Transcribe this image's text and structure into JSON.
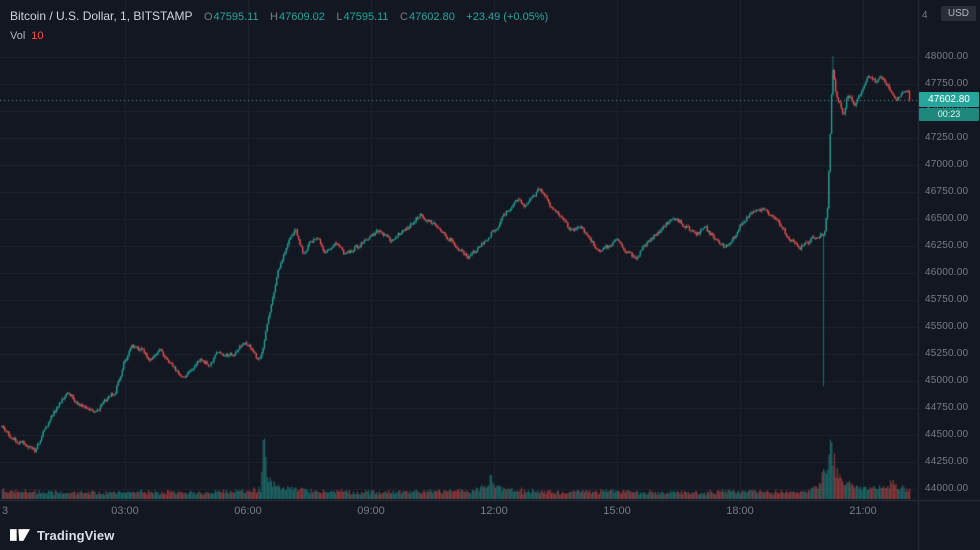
{
  "header": {
    "symbol_title": "Bitcoin / U.S. Dollar, 1, BITSTAMP",
    "ohlc": {
      "o_label": "O",
      "o": "47595.11",
      "h_label": "H",
      "h": "47609.02",
      "l_label": "L",
      "l": "47595.11",
      "c_label": "C",
      "c": "47602.80",
      "change": "+23.49 (+0.05%)"
    },
    "indicator": {
      "label": "Vol",
      "value": "10"
    }
  },
  "price_scale": {
    "currency_button": "USD",
    "partial_tick": "4",
    "ticks": [
      "48000.00",
      "47750.00",
      "47500.00",
      "47250.00",
      "47000.00",
      "46750.00",
      "46500.00",
      "46250.00",
      "46000.00",
      "45750.00",
      "45500.00",
      "45250.00",
      "45000.00",
      "44750.00",
      "44500.00",
      "44250.00",
      "44000.00"
    ],
    "last_price_label": "47602.80",
    "countdown": "00:23"
  },
  "time_scale": {
    "labels": [
      {
        "t": 0,
        "text": "3"
      },
      {
        "t": 180,
        "text": "03:00"
      },
      {
        "t": 360,
        "text": "06:00"
      },
      {
        "t": 540,
        "text": "09:00"
      },
      {
        "t": 720,
        "text": "12:00"
      },
      {
        "t": 900,
        "text": "15:00"
      },
      {
        "t": 1080,
        "text": "18:00"
      },
      {
        "t": 1260,
        "text": "21:00"
      }
    ]
  },
  "footer": {
    "brand": "TradingView"
  },
  "colors": {
    "bg": "#131722",
    "grid": "#1e222d",
    "separator": "#2a2e39",
    "axis_text": "#787b86",
    "text": "#d1d4dc",
    "up": "#26a69a",
    "down": "#ef5350",
    "last_line": "#4ba69c",
    "label_bg": "#26a69a",
    "countdown_bg": "#1e887c",
    "vol_value_red": "#ef5350"
  },
  "chart_data": {
    "type": "candlestick",
    "symbol": "BTCUSD",
    "pair": "Bitcoin / U.S. Dollar",
    "exchange": "BITSTAMP",
    "interval": "1",
    "ohlc_current": {
      "open": 47595.11,
      "high": 47609.02,
      "low": 47595.11,
      "close": 47602.8,
      "change": 23.49,
      "change_pct": 0.05
    },
    "volume_current": 10,
    "last_price": 47602.8,
    "countdown": "00:23",
    "y_axis": {
      "min": 44000,
      "max": 48000,
      "tick_step": 250
    },
    "x_axis": {
      "start_minute": 0,
      "end_minute": 1330,
      "tick_step_minutes": 180,
      "date_label": "3"
    },
    "legend_position": "top-left",
    "grid": true,
    "price_path": [
      [
        0,
        44580
      ],
      [
        15,
        44470
      ],
      [
        30,
        44420
      ],
      [
        48,
        44360
      ],
      [
        60,
        44520
      ],
      [
        75,
        44700
      ],
      [
        97,
        44900
      ],
      [
        110,
        44800
      ],
      [
        121,
        44740
      ],
      [
        135,
        44700
      ],
      [
        151,
        44820
      ],
      [
        166,
        44900
      ],
      [
        178,
        45150
      ],
      [
        190,
        45330
      ],
      [
        205,
        45280
      ],
      [
        217,
        45190
      ],
      [
        231,
        45280
      ],
      [
        245,
        45160
      ],
      [
        263,
        45030
      ],
      [
        278,
        45120
      ],
      [
        290,
        45190
      ],
      [
        305,
        45140
      ],
      [
        312,
        45260
      ],
      [
        325,
        45230
      ],
      [
        340,
        45250
      ],
      [
        356,
        45370
      ],
      [
        366,
        45290
      ],
      [
        375,
        45180
      ],
      [
        381,
        45260
      ],
      [
        392,
        45650
      ],
      [
        404,
        46020
      ],
      [
        414,
        46210
      ],
      [
        421,
        46330
      ],
      [
        429,
        46400
      ],
      [
        441,
        46170
      ],
      [
        451,
        46280
      ],
      [
        462,
        46320
      ],
      [
        473,
        46180
      ],
      [
        487,
        46290
      ],
      [
        502,
        46170
      ],
      [
        517,
        46230
      ],
      [
        531,
        46290
      ],
      [
        539,
        46330
      ],
      [
        553,
        46400
      ],
      [
        568,
        46310
      ],
      [
        583,
        46370
      ],
      [
        597,
        46440
      ],
      [
        612,
        46540
      ],
      [
        627,
        46470
      ],
      [
        641,
        46400
      ],
      [
        656,
        46310
      ],
      [
        670,
        46210
      ],
      [
        685,
        46140
      ],
      [
        700,
        46260
      ],
      [
        714,
        46350
      ],
      [
        724,
        46420
      ],
      [
        736,
        46540
      ],
      [
        751,
        46680
      ],
      [
        765,
        46630
      ],
      [
        780,
        46720
      ],
      [
        787,
        46780
      ],
      [
        802,
        46630
      ],
      [
        817,
        46540
      ],
      [
        831,
        46400
      ],
      [
        846,
        46440
      ],
      [
        861,
        46310
      ],
      [
        875,
        46200
      ],
      [
        890,
        46260
      ],
      [
        900,
        46310
      ],
      [
        912,
        46210
      ],
      [
        927,
        46140
      ],
      [
        941,
        46260
      ],
      [
        956,
        46350
      ],
      [
        970,
        46440
      ],
      [
        985,
        46510
      ],
      [
        1000,
        46440
      ],
      [
        1014,
        46350
      ],
      [
        1029,
        46420
      ],
      [
        1044,
        46310
      ],
      [
        1058,
        46230
      ],
      [
        1073,
        46350
      ],
      [
        1080,
        46440
      ],
      [
        1095,
        46540
      ],
      [
        1109,
        46600
      ],
      [
        1124,
        46540
      ],
      [
        1139,
        46440
      ],
      [
        1153,
        46310
      ],
      [
        1168,
        46230
      ],
      [
        1183,
        46310
      ],
      [
        1197,
        46350
      ],
      [
        1204,
        46380
      ],
      [
        1208,
        46600
      ],
      [
        1211,
        47100
      ],
      [
        1214,
        47650
      ],
      [
        1216,
        47900
      ],
      [
        1220,
        47680
      ],
      [
        1224,
        47600
      ],
      [
        1231,
        47460
      ],
      [
        1238,
        47650
      ],
      [
        1248,
        47560
      ],
      [
        1259,
        47700
      ],
      [
        1267,
        47830
      ],
      [
        1278,
        47770
      ],
      [
        1288,
        47800
      ],
      [
        1300,
        47700
      ],
      [
        1310,
        47600
      ],
      [
        1317,
        47650
      ],
      [
        1324,
        47700
      ],
      [
        1330,
        47603
      ]
    ],
    "volume_profile": [
      [
        0,
        0.1
      ],
      [
        20,
        0.06
      ],
      [
        60,
        0.05
      ],
      [
        120,
        0.04
      ],
      [
        180,
        0.06
      ],
      [
        240,
        0.05
      ],
      [
        300,
        0.04
      ],
      [
        360,
        0.07
      ],
      [
        378,
        0.1
      ],
      [
        383,
        0.85
      ],
      [
        388,
        0.25
      ],
      [
        400,
        0.15
      ],
      [
        420,
        0.1
      ],
      [
        450,
        0.08
      ],
      [
        480,
        0.06
      ],
      [
        520,
        0.06
      ],
      [
        560,
        0.05
      ],
      [
        600,
        0.06
      ],
      [
        650,
        0.07
      ],
      [
        690,
        0.08
      ],
      [
        710,
        0.15
      ],
      [
        716,
        0.35
      ],
      [
        722,
        0.15
      ],
      [
        750,
        0.08
      ],
      [
        790,
        0.06
      ],
      [
        830,
        0.05
      ],
      [
        870,
        0.06
      ],
      [
        900,
        0.07
      ],
      [
        940,
        0.05
      ],
      [
        980,
        0.05
      ],
      [
        1020,
        0.05
      ],
      [
        1060,
        0.06
      ],
      [
        1090,
        0.07
      ],
      [
        1120,
        0.06
      ],
      [
        1150,
        0.05
      ],
      [
        1180,
        0.07
      ],
      [
        1198,
        0.2
      ],
      [
        1202,
        0.55
      ],
      [
        1206,
        0.3
      ],
      [
        1212,
        0.9
      ],
      [
        1217,
        0.55
      ],
      [
        1222,
        0.35
      ],
      [
        1230,
        0.22
      ],
      [
        1240,
        0.18
      ],
      [
        1252,
        0.14
      ],
      [
        1264,
        0.12
      ],
      [
        1276,
        0.12
      ],
      [
        1290,
        0.14
      ],
      [
        1302,
        0.2
      ],
      [
        1312,
        0.12
      ],
      [
        1322,
        0.1
      ],
      [
        1330,
        0.12
      ]
    ],
    "special_wicks": [
      {
        "t": 1202,
        "low": 44950
      },
      {
        "t": 1216,
        "high": 48010
      }
    ],
    "t_end": 1330,
    "noise_seed": 42,
    "noise_amp": 40
  }
}
